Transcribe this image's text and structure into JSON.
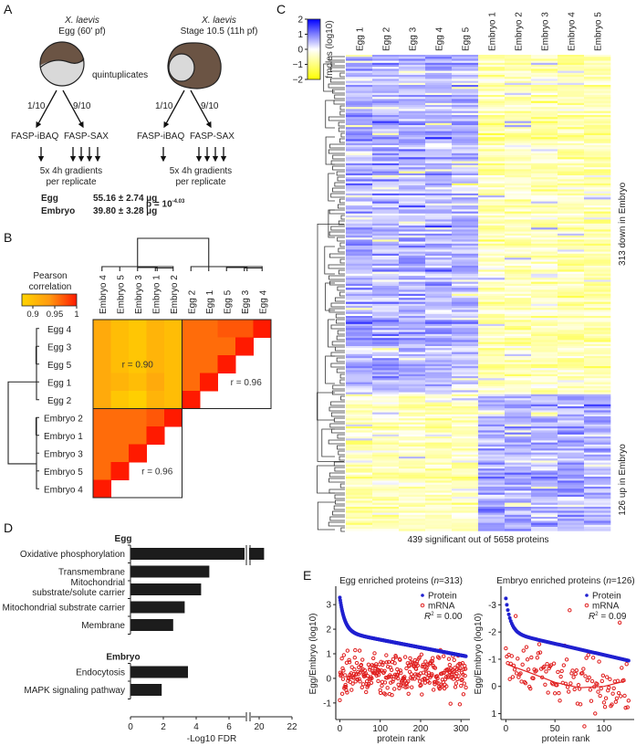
{
  "panels": {
    "a": {
      "label": "A"
    },
    "b": {
      "label": "B"
    },
    "c": {
      "label": "C"
    },
    "d": {
      "label": "D"
    },
    "e": {
      "label": "E"
    }
  },
  "panel_a": {
    "left_species": "X. laevis",
    "left_stage": "Egg (60' pf)",
    "right_species": "X. laevis",
    "right_stage": "Stage 10.5 (11h pf)",
    "middle_note": "quintuplicates",
    "split_small": "1/10",
    "split_large": "9/10",
    "method_ibaq": "FASP-iBAQ",
    "method_sax": "FASP-SAX",
    "gradients_line1": "5x 4h gradients",
    "gradients_line2": "per replicate",
    "rows": [
      {
        "name": "Egg",
        "value": "55.16 ± 2.74 µg"
      },
      {
        "name": "Embryo",
        "value": "39.80 ± 3.28 µg"
      }
    ],
    "p_prefix": "p = 10",
    "p_exponent": "-4.03",
    "colors": {
      "yolk_dark": "#6b5444",
      "yolk_light": "#d9d9d9"
    }
  },
  "chart_data": [
    {
      "id": "B",
      "type": "heatmap",
      "title": "Pearson correlation",
      "colorbar": {
        "ticks": [
          "0.9",
          "0.95",
          "1"
        ],
        "range": [
          0.875,
          1.0
        ],
        "colors": [
          "#ffd400",
          "#ff0000"
        ]
      },
      "column_labels": [
        "Embryo 4",
        "Embryo 5",
        "Embryo 3",
        "Embryo 1",
        "Embryo 2",
        "Egg 2",
        "Egg 1",
        "Egg 5",
        "Egg 3",
        "Egg 4"
      ],
      "row_labels": [
        "Egg 4",
        "Egg 3",
        "Egg 5",
        "Egg 1",
        "Egg 2",
        "Embryo 2",
        "Embryo 1",
        "Embryo 3",
        "Embryo 5",
        "Embryo 4"
      ],
      "cross_block": [
        [
          0.92,
          0.9,
          0.89,
          0.91,
          0.9
        ],
        [
          0.92,
          0.9,
          0.89,
          0.91,
          0.9
        ],
        [
          0.92,
          0.9,
          0.89,
          0.91,
          0.9
        ],
        [
          0.92,
          0.91,
          0.9,
          0.92,
          0.9
        ],
        [
          0.92,
          0.89,
          0.88,
          0.91,
          0.9
        ]
      ],
      "egg_block": [
        [
          0.96,
          0.96,
          0.97,
          0.97,
          1.0
        ],
        [
          0.96,
          0.96,
          0.96,
          1.0
        ],
        [
          0.96,
          0.96,
          1.0
        ],
        [
          0.96,
          1.0
        ],
        [
          1.0
        ]
      ],
      "embryo_block": [
        [
          0.96,
          0.96,
          0.96,
          0.97,
          1.0
        ],
        [
          0.96,
          0.96,
          0.96,
          1.0
        ],
        [
          0.96,
          0.96,
          1.0
        ],
        [
          0.96,
          1.0
        ],
        [
          1.0
        ]
      ],
      "annotations": [
        "r = 0.90",
        "r = 0.96",
        "r = 0.96"
      ]
    },
    {
      "id": "C",
      "type": "heatmap",
      "colorbar": {
        "label": "fmoles (log10)",
        "ticks": [
          "2",
          "1",
          "0",
          "−1",
          "−2"
        ],
        "range": [
          -2,
          2
        ],
        "colors": [
          "#ffff00",
          "#ffffff",
          "#0000ff"
        ]
      },
      "column_labels": [
        "Egg 1",
        "Egg 2",
        "Egg 3",
        "Egg 4",
        "Egg 5",
        "Embryo 1",
        "Embryo 2",
        "Embryo 3",
        "Embryo 4",
        "Embryo 5"
      ],
      "groups": [
        {
          "label": "313 down in Embryo",
          "count": 313,
          "egg_mean": 0.55,
          "embryo_mean": -0.55
        },
        {
          "label": "126 up in Embryo",
          "count": 126,
          "egg_mean": -0.55,
          "embryo_mean": 0.6
        }
      ],
      "footer": "439 significant out of 5658 proteins"
    },
    {
      "id": "D",
      "type": "bar",
      "orientation": "horizontal",
      "xlabel": "-Log10 FDR",
      "x_ticks": [
        "0",
        "2",
        "4",
        "6",
        "20",
        "22"
      ],
      "axis_break": [
        7,
        19.5
      ],
      "groups": [
        {
          "title": "Egg",
          "categories": [
            "Oxidative phosphorylation",
            "Transmembrane",
            "Mitochondrial substrate/solute carrier",
            "Mitochondrial substrate carrier",
            "Membrane"
          ],
          "values": [
            20.3,
            4.8,
            4.3,
            3.3,
            2.6
          ]
        },
        {
          "title": "Embryo",
          "categories": [
            "Endocytosis",
            "MAPK signaling pathway"
          ],
          "values": [
            3.5,
            1.9
          ]
        }
      ]
    },
    {
      "id": "E-left",
      "type": "scatter",
      "title": "Egg enriched proteins (n=313)",
      "title_main": "Egg enriched proteins (",
      "title_n": "n",
      "title_rest": "=313)",
      "xlabel": "protein rank",
      "ylabel": "Egg/Embryo (log10)",
      "x_ticks": [
        "0",
        "100",
        "200",
        "300"
      ],
      "y_ticks": [
        "3",
        "2",
        "1",
        "0",
        "-1"
      ],
      "xlim": [
        -10,
        313
      ],
      "ylim": [
        -1.6,
        3.6
      ],
      "n": 313,
      "series": [
        {
          "name": "Protein",
          "color": "#2020d0",
          "profile": {
            "start": 3.4,
            "knee": 2.0,
            "end": 0.9
          }
        },
        {
          "name": "mRNA",
          "color": "#e02020",
          "mean": 0.15,
          "sd": 0.4,
          "min": -1.35,
          "max": 1.15
        }
      ],
      "r2_label": "R",
      "r2_value": " = 0.00"
    },
    {
      "id": "E-right",
      "type": "scatter",
      "title": "Embryo enriched proteins (n=126)",
      "title_main": "Embryo enriched proteins (",
      "title_n": "n",
      "title_rest": "=126)",
      "xlabel": "protein rank",
      "ylabel": "Egg/Embryo (log10)",
      "x_ticks": [
        "0",
        "50",
        "100"
      ],
      "y_ticks": [
        "-3",
        "-2",
        "-1",
        "0",
        "1"
      ],
      "xlim": [
        -5,
        127
      ],
      "ylim": [
        1.15,
        -3.55
      ],
      "n": 126,
      "series": [
        {
          "name": "Protein",
          "color": "#2020d0",
          "profile": {
            "start": -3.35,
            "knee": -2.1,
            "end": -0.95
          }
        },
        {
          "name": "mRNA",
          "color": "#e02020",
          "mean": -0.25,
          "sd": 0.45,
          "min": 1.0,
          "max": -3.4
        },
        {
          "name": "mRNA trend",
          "color": "#e02020",
          "points": [
            [
              2,
              -0.8
            ],
            [
              25,
              -0.5
            ],
            [
              50,
              -0.15
            ],
            [
              75,
              0.05
            ],
            [
              100,
              0.0
            ],
            [
              122,
              -0.2
            ]
          ]
        }
      ],
      "r2_label": "R",
      "r2_value": " = 0.09"
    }
  ]
}
